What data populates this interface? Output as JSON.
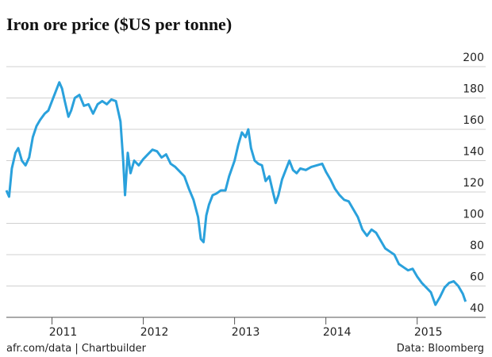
{
  "chart_data": {
    "type": "line",
    "title": "Iron ore price ($US per tonne)",
    "source_left": "afr.com/data | Chartbuilder",
    "source_right": "Data: Bloomberg",
    "color": "#2aa1dc",
    "grid": true,
    "x": [
      2010.5,
      2010.53,
      2010.56,
      2010.6,
      2010.63,
      2010.67,
      2010.71,
      2010.75,
      2010.79,
      2010.83,
      2010.87,
      2010.92,
      2010.96,
      2011.0,
      2011.04,
      2011.08,
      2011.11,
      2011.14,
      2011.18,
      2011.21,
      2011.25,
      2011.3,
      2011.35,
      2011.4,
      2011.45,
      2011.5,
      2011.55,
      2011.6,
      2011.65,
      2011.7,
      2011.75,
      2011.78,
      2011.8,
      2011.83,
      2011.86,
      2011.9,
      2011.95,
      2012.0,
      2012.05,
      2012.1,
      2012.15,
      2012.2,
      2012.25,
      2012.3,
      2012.35,
      2012.4,
      2012.45,
      2012.5,
      2012.55,
      2012.6,
      2012.63,
      2012.66,
      2012.69,
      2012.72,
      2012.76,
      2012.8,
      2012.85,
      2012.9,
      2012.94,
      2013.0,
      2013.04,
      2013.08,
      2013.12,
      2013.15,
      2013.18,
      2013.22,
      2013.26,
      2013.3,
      2013.34,
      2013.38,
      2013.42,
      2013.45,
      2013.48,
      2013.52,
      2013.56,
      2013.6,
      2013.64,
      2013.68,
      2013.72,
      2013.78,
      2013.84,
      2013.9,
      2013.96,
      2014.0,
      2014.05,
      2014.1,
      2014.15,
      2014.2,
      2014.25,
      2014.3,
      2014.35,
      2014.4,
      2014.45,
      2014.5,
      2014.55,
      2014.6,
      2014.65,
      2014.7,
      2014.75,
      2014.8,
      2014.85,
      2014.9,
      2014.95,
      2015.0,
      2015.05,
      2015.1,
      2015.15,
      2015.2,
      2015.25,
      2015.3,
      2015.35,
      2015.4,
      2015.45,
      2015.5,
      2015.53
    ],
    "values": [
      121,
      117,
      135,
      145,
      148,
      140,
      137,
      142,
      155,
      162,
      166,
      170,
      172,
      178,
      184,
      190,
      186,
      178,
      168,
      172,
      180,
      182,
      175,
      176,
      170,
      176,
      178,
      176,
      179,
      178,
      165,
      140,
      118,
      145,
      132,
      140,
      137,
      141,
      144,
      147,
      146,
      142,
      144,
      138,
      136,
      133,
      130,
      122,
      115,
      104,
      90,
      88,
      105,
      112,
      118,
      119,
      121,
      121,
      130,
      140,
      150,
      158,
      155,
      160,
      148,
      140,
      138,
      137,
      127,
      130,
      120,
      113,
      118,
      128,
      134,
      140,
      134,
      132,
      135,
      134,
      136,
      137,
      138,
      133,
      128,
      122,
      118,
      115,
      114,
      109,
      104,
      96,
      92,
      96,
      94,
      89,
      84,
      82,
      80,
      74,
      72,
      70,
      71,
      66,
      62,
      59,
      56,
      48,
      53,
      59,
      62,
      63,
      60,
      55,
      50
    ],
    "xlim": [
      2010.5,
      2015.75
    ],
    "xticks": [
      2011,
      2012,
      2013,
      2014,
      2015
    ],
    "ylim": [
      40,
      200
    ],
    "yticks": [
      40,
      60,
      80,
      100,
      120,
      140,
      160,
      180,
      200
    ]
  }
}
